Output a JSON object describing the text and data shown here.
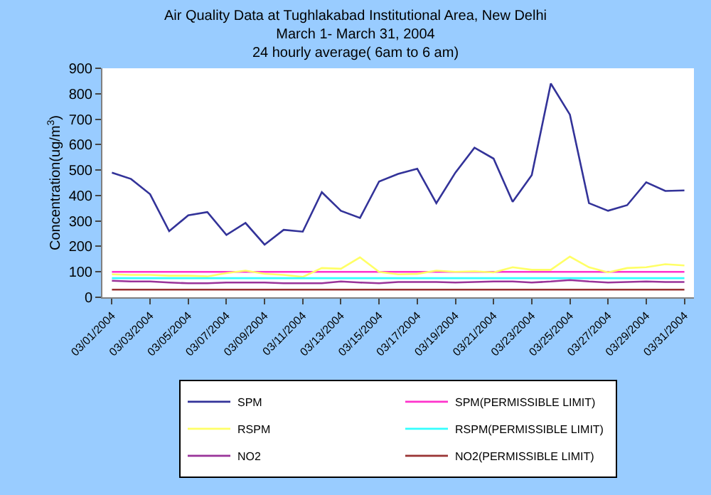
{
  "chart_data": {
    "type": "line",
    "title": "Air Quality Data at Tughlakabad Institutional Area, New Delhi\nMarch 1- March 31, 2004\n24 hourly average( 6am to 6 am)",
    "ylabel": "Concentration(ug/m$^{3}$)",
    "categories": [
      "03/01/2004",
      null,
      "03/03/2004",
      null,
      "03/05/2004",
      null,
      "03/07/2004",
      null,
      "03/09/2004",
      null,
      "03/11/2004",
      null,
      "03/13/2004",
      null,
      "03/15/2004",
      null,
      "03/17/2004",
      null,
      "03/19/2004",
      null,
      "03/21/2004",
      null,
      "03/23/2004",
      null,
      "03/25/2004",
      null,
      "03/27/2004",
      null,
      "03/29/2004",
      null,
      "03/31/2004"
    ],
    "series": [
      {
        "name": "SPM",
        "color": "#333399",
        "values": [
          490,
          465,
          405,
          260,
          322,
          335,
          245,
          292,
          207,
          265,
          258,
          413,
          340,
          312,
          455,
          485,
          505,
          370,
          490,
          588,
          545,
          375,
          480,
          840,
          718,
          370,
          340,
          362,
          452,
          418,
          420
        ]
      },
      {
        "name": "SPM(PERMISSIBLE LIMIT)",
        "color": "#ff33cc",
        "values": [
          100,
          100,
          100,
          100,
          100,
          100,
          100,
          100,
          100,
          100,
          100,
          100,
          100,
          100,
          100,
          100,
          100,
          100,
          100,
          100,
          100,
          100,
          100,
          100,
          100,
          100,
          100,
          100,
          100,
          100,
          100
        ]
      },
      {
        "name": "RSPM",
        "color": "#ffff66",
        "values": [
          90,
          88,
          88,
          85,
          85,
          82,
          95,
          105,
          92,
          88,
          80,
          115,
          112,
          157,
          100,
          90,
          92,
          105,
          100,
          102,
          98,
          118,
          108,
          108,
          160,
          118,
          98,
          115,
          118,
          130,
          125
        ]
      },
      {
        "name": "RSPM(PERMISSIBLE LIMIT)",
        "color": "#33ffff",
        "values": [
          75,
          75,
          75,
          75,
          75,
          75,
          75,
          75,
          75,
          75,
          75,
          75,
          75,
          75,
          75,
          75,
          75,
          75,
          75,
          75,
          75,
          75,
          75,
          75,
          75,
          75,
          75,
          75,
          75,
          75,
          75
        ]
      },
      {
        "name": "NO2",
        "color": "#993399",
        "values": [
          65,
          62,
          62,
          58,
          55,
          55,
          58,
          58,
          58,
          55,
          55,
          55,
          62,
          58,
          55,
          60,
          60,
          60,
          58,
          60,
          62,
          62,
          58,
          62,
          68,
          62,
          58,
          60,
          62,
          60,
          60
        ]
      },
      {
        "name": "NO2(PERMISSIBLE LIMIT)",
        "color": "#993333",
        "values": [
          30,
          30,
          30,
          30,
          30,
          30,
          30,
          30,
          30,
          30,
          30,
          30,
          30,
          30,
          30,
          30,
          30,
          30,
          30,
          30,
          30,
          30,
          30,
          30,
          30,
          30,
          30,
          30,
          30,
          30,
          30
        ]
      }
    ],
    "ylim": [
      0,
      900
    ],
    "yticks": [
      0,
      100,
      200,
      300,
      400,
      500,
      600,
      700,
      800,
      900
    ],
    "grid": false,
    "legend": "bottom",
    "marker": "none",
    "line_style": "solid"
  }
}
